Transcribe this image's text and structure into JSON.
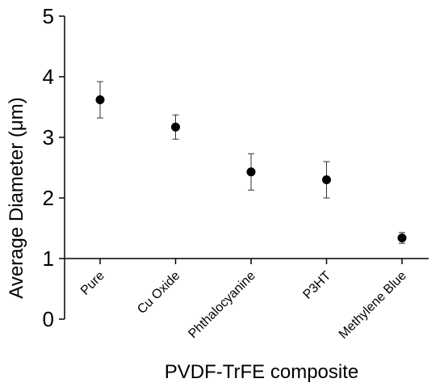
{
  "chart_data": {
    "type": "scatter",
    "title": "",
    "xlabel": "PVDF-TrFE composite",
    "ylabel": "Average Diameter (μm)",
    "categories": [
      "Pure",
      "Cu Oxide",
      "Phthalocyanine",
      "P3HT",
      "Methylene Blue"
    ],
    "values": [
      3.62,
      3.17,
      2.43,
      2.3,
      1.34
    ],
    "errors": [
      0.3,
      0.2,
      0.3,
      0.3,
      0.09
    ],
    "ylim": [
      0,
      5
    ],
    "yticks": [
      "0",
      "1",
      "2",
      "3",
      "4",
      "5"
    ],
    "grid": false,
    "legend": "none",
    "marker_color": "#000000"
  }
}
